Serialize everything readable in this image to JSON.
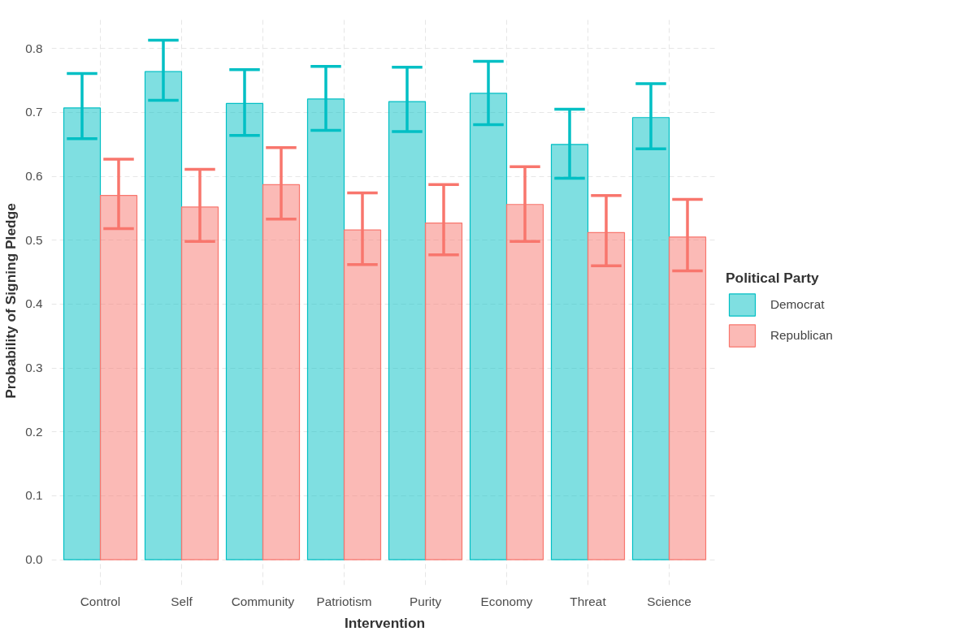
{
  "chart_data": {
    "type": "bar",
    "xlabel": "Intervention",
    "ylabel": "Probability of Signing Pledge",
    "legend_title": "Political Party",
    "categories": [
      "Control",
      "Self",
      "Community",
      "Patriotism",
      "Purity",
      "Economy",
      "Threat",
      "Science"
    ],
    "series": [
      {
        "name": "Democrat",
        "color": "#00bfc4",
        "values": [
          0.707,
          0.764,
          0.714,
          0.721,
          0.717,
          0.73,
          0.65,
          0.692
        ],
        "errors": [
          [
            0.659,
            0.761
          ],
          [
            0.719,
            0.813
          ],
          [
            0.664,
            0.767
          ],
          [
            0.672,
            0.772
          ],
          [
            0.67,
            0.771
          ],
          [
            0.681,
            0.78
          ],
          [
            0.597,
            0.705
          ],
          [
            0.643,
            0.745
          ]
        ]
      },
      {
        "name": "Republican",
        "color": "#f8766d",
        "values": [
          0.57,
          0.552,
          0.587,
          0.516,
          0.527,
          0.556,
          0.512,
          0.505
        ],
        "errors": [
          [
            0.518,
            0.627
          ],
          [
            0.498,
            0.611
          ],
          [
            0.533,
            0.645
          ],
          [
            0.462,
            0.574
          ],
          [
            0.477,
            0.587
          ],
          [
            0.498,
            0.615
          ],
          [
            0.46,
            0.57
          ],
          [
            0.452,
            0.564
          ]
        ]
      }
    ],
    "ylim": [
      -0.04,
      0.85
    ],
    "yticks": [
      "0.0",
      0.1,
      0.2,
      0.3,
      0.4,
      0.5,
      0.6,
      0.7,
      0.8
    ],
    "grid": true,
    "legend": "right"
  }
}
